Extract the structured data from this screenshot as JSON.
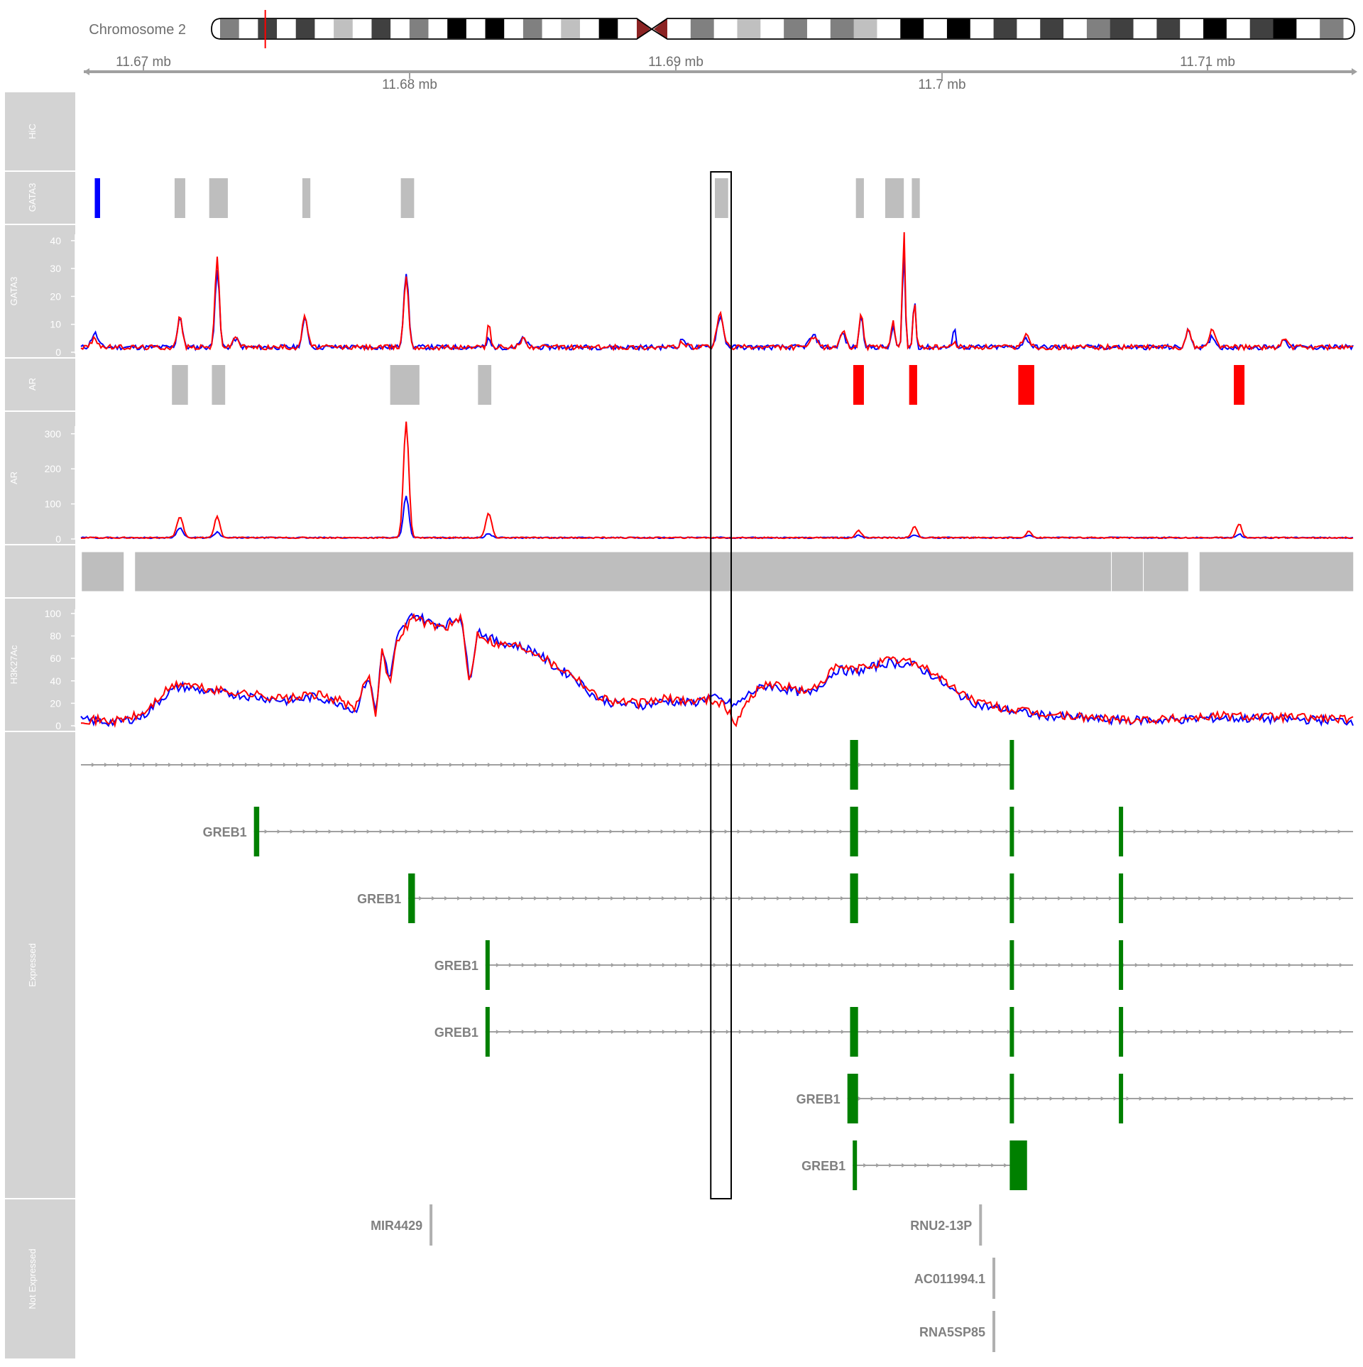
{
  "ideogram": {
    "chromosome_label": "Chromosome 2",
    "marker_position_fraction": 0.047
  },
  "axis": {
    "unit": "mb",
    "tick_labels_top": [
      "11.67 mb",
      "11.69 mb",
      "11.71 mb"
    ],
    "tick_labels_bottom": [
      "11.68 mb",
      "11.7 mb"
    ]
  },
  "tracks": {
    "hic": "HiC",
    "gata3_peaks": "GATA3",
    "gata3_signal": "GATA3",
    "ar_peaks": "AR",
    "ar_signal": "AR",
    "segments": "",
    "h3k27ac": "H3K27Ac",
    "expressed": "Expressed",
    "not_expressed": "Not Expressed"
  },
  "colors": {
    "series_blue": "#0000ff",
    "series_red": "#ff0000",
    "peak_gray": "#bebebe",
    "gene_green": "#008000",
    "panel_gray": "#d3d3d3",
    "centromere": "#8b2323"
  },
  "chart_data": {
    "type": "line",
    "genomic_range_mb": [
      11.6659,
      11.7137
    ],
    "highlight_region_mb": [
      11.6897,
      11.6902
    ],
    "gata3_peaks": [
      {
        "start": 11.66642,
        "end": 11.66662,
        "color": "blue"
      },
      {
        "start": 11.66942,
        "end": 11.66982,
        "color": "gray"
      },
      {
        "start": 11.67072,
        "end": 11.67142,
        "color": "gray"
      },
      {
        "start": 11.67422,
        "end": 11.67452,
        "color": "gray"
      },
      {
        "start": 11.67792,
        "end": 11.67842,
        "color": "gray"
      },
      {
        "start": 11.68972,
        "end": 11.69022,
        "color": "gray"
      },
      {
        "start": 11.69502,
        "end": 11.69532,
        "color": "gray"
      },
      {
        "start": 11.69612,
        "end": 11.69682,
        "color": "gray"
      },
      {
        "start": 11.69712,
        "end": 11.69742,
        "color": "gray"
      }
    ],
    "gata3_signal": {
      "ylim": [
        0,
        42
      ],
      "yticks": [
        0,
        10,
        20,
        30,
        40
      ],
      "baseline": 1.5,
      "peaks": [
        {
          "x": 11.66642,
          "blue": 5,
          "red": 3,
          "width": 0.00012
        },
        {
          "x": 11.66962,
          "blue": 11,
          "red": 11,
          "width": 9e-05
        },
        {
          "x": 11.67102,
          "blue": 28,
          "red": 32,
          "width": 8e-05
        },
        {
          "x": 11.67172,
          "blue": 3,
          "red": 4,
          "width": 0.0001
        },
        {
          "x": 11.67432,
          "blue": 10,
          "red": 11,
          "width": 0.0001
        },
        {
          "x": 11.67812,
          "blue": 27,
          "red": 25,
          "width": 9e-05
        },
        {
          "x": 11.68122,
          "blue": 3,
          "red": 9,
          "width": 6e-05
        },
        {
          "x": 11.68252,
          "blue": 3,
          "red": 3,
          "width": 0.00012
        },
        {
          "x": 11.68852,
          "blue": 3,
          "red": 2,
          "width": 0.0001
        },
        {
          "x": 11.68992,
          "blue": 11,
          "red": 12,
          "width": 0.00012
        },
        {
          "x": 11.69342,
          "blue": 4,
          "red": 3,
          "width": 0.00015
        },
        {
          "x": 11.69452,
          "blue": 5,
          "red": 6,
          "width": 0.0001
        },
        {
          "x": 11.69522,
          "blue": 12,
          "red": 13,
          "width": 7e-05
        },
        {
          "x": 11.69642,
          "blue": 8,
          "red": 10,
          "width": 6e-05
        },
        {
          "x": 11.69682,
          "blue": 36,
          "red": 42,
          "width": 5e-05
        },
        {
          "x": 11.69722,
          "blue": 18,
          "red": 17,
          "width": 5e-05
        },
        {
          "x": 11.69872,
          "blue": 6,
          "red": 2,
          "width": 6e-05
        },
        {
          "x": 11.70142,
          "blue": 3,
          "red": 5,
          "width": 0.00012
        },
        {
          "x": 11.70752,
          "blue": 6,
          "red": 6,
          "width": 0.0001
        },
        {
          "x": 11.70842,
          "blue": 4,
          "red": 7,
          "width": 0.0001
        },
        {
          "x": 11.71112,
          "blue": 3,
          "red": 3,
          "width": 0.0001
        }
      ]
    },
    "ar_peaks": [
      {
        "start": 11.66932,
        "end": 11.66992,
        "color": "gray"
      },
      {
        "start": 11.67082,
        "end": 11.67132,
        "color": "gray"
      },
      {
        "start": 11.67752,
        "end": 11.67862,
        "color": "gray"
      },
      {
        "start": 11.68082,
        "end": 11.68132,
        "color": "gray"
      },
      {
        "start": 11.69492,
        "end": 11.69532,
        "color": "red"
      },
      {
        "start": 11.69702,
        "end": 11.69732,
        "color": "red"
      },
      {
        "start": 11.70112,
        "end": 11.70172,
        "color": "red"
      },
      {
        "start": 11.70922,
        "end": 11.70962,
        "color": "red"
      }
    ],
    "ar_signal": {
      "ylim": [
        0,
        330
      ],
      "yticks": [
        0,
        100,
        200,
        300
      ],
      "baseline": 3,
      "peaks": [
        {
          "x": 11.66962,
          "blue": 28,
          "red": 58,
          "width": 0.00012
        },
        {
          "x": 11.67102,
          "blue": 16,
          "red": 62,
          "width": 0.0001
        },
        {
          "x": 11.67812,
          "blue": 120,
          "red": 330,
          "width": 0.0001
        },
        {
          "x": 11.68122,
          "blue": 12,
          "red": 70,
          "width": 0.00011
        },
        {
          "x": 11.69512,
          "blue": 6,
          "red": 20,
          "width": 0.00011
        },
        {
          "x": 11.69722,
          "blue": 8,
          "red": 32,
          "width": 0.0001
        },
        {
          "x": 11.70152,
          "blue": 8,
          "red": 20,
          "width": 0.0001
        },
        {
          "x": 11.70942,
          "blue": 10,
          "red": 40,
          "width": 0.0001
        }
      ]
    },
    "segments": [
      {
        "start": 11.66592,
        "end": 11.66752
      },
      {
        "start": 11.66792,
        "end": 11.70462
      },
      {
        "start": 11.70462,
        "end": 11.70582
      },
      {
        "start": 11.70582,
        "end": 11.70752
      },
      {
        "start": 11.70792,
        "end": 11.71372
      }
    ],
    "h3k27ac_signal": {
      "ylim": [
        0,
        105
      ],
      "yticks": [
        0,
        20,
        40,
        60,
        80,
        100
      ],
      "blue_points": [
        [
          11.6659,
          5
        ],
        [
          11.6672,
          3
        ],
        [
          11.6682,
          8
        ],
        [
          11.6692,
          30
        ],
        [
          11.6697,
          35
        ],
        [
          11.6707,
          30
        ],
        [
          11.6717,
          28
        ],
        [
          11.6727,
          25
        ],
        [
          11.6737,
          22
        ],
        [
          11.6747,
          26
        ],
        [
          11.6757,
          20
        ],
        [
          11.6762,
          12
        ],
        [
          11.6767,
          45
        ],
        [
          11.677,
          10
        ],
        [
          11.6772,
          70
        ],
        [
          11.6775,
          40
        ],
        [
          11.6778,
          80
        ],
        [
          11.6784,
          100
        ],
        [
          11.679,
          92
        ],
        [
          11.6796,
          90
        ],
        [
          11.6802,
          98
        ],
        [
          11.6805,
          38
        ],
        [
          11.6808,
          85
        ],
        [
          11.6815,
          75
        ],
        [
          11.6822,
          72
        ],
        [
          11.683,
          66
        ],
        [
          11.6837,
          52
        ],
        [
          11.6844,
          44
        ],
        [
          11.6852,
          26
        ],
        [
          11.6859,
          20
        ],
        [
          11.6869,
          18
        ],
        [
          11.6879,
          22
        ],
        [
          11.6889,
          20
        ],
        [
          11.6895,
          26
        ],
        [
          11.69,
          22
        ],
        [
          11.6905,
          18
        ],
        [
          11.6911,
          30
        ],
        [
          11.6917,
          36
        ],
        [
          11.6925,
          32
        ],
        [
          11.6933,
          28
        ],
        [
          11.6943,
          50
        ],
        [
          11.695,
          48
        ],
        [
          11.6962,
          56
        ],
        [
          11.6971,
          55
        ],
        [
          11.6979,
          45
        ],
        [
          11.6987,
          30
        ],
        [
          11.6997,
          18
        ],
        [
          11.7007,
          14
        ],
        [
          11.7017,
          10
        ],
        [
          11.7027,
          8
        ],
        [
          11.7047,
          5
        ],
        [
          11.7067,
          5
        ],
        [
          11.7087,
          7
        ],
        [
          11.7107,
          6
        ],
        [
          11.7127,
          5
        ],
        [
          11.7137,
          4
        ]
      ],
      "red_points": [
        [
          11.6659,
          6
        ],
        [
          11.6672,
          4
        ],
        [
          11.6682,
          10
        ],
        [
          11.6692,
          33
        ],
        [
          11.6697,
          38
        ],
        [
          11.6707,
          32
        ],
        [
          11.6717,
          30
        ],
        [
          11.6727,
          27
        ],
        [
          11.6737,
          24
        ],
        [
          11.6747,
          28
        ],
        [
          11.6757,
          22
        ],
        [
          11.6762,
          14
        ],
        [
          11.6767,
          47
        ],
        [
          11.677,
          8
        ],
        [
          11.6772,
          72
        ],
        [
          11.6775,
          36
        ],
        [
          11.6778,
          78
        ],
        [
          11.6784,
          97
        ],
        [
          11.679,
          90
        ],
        [
          11.6796,
          88
        ],
        [
          11.6802,
          95
        ],
        [
          11.6805,
          36
        ],
        [
          11.6808,
          83
        ],
        [
          11.6815,
          73
        ],
        [
          11.6822,
          72
        ],
        [
          11.683,
          66
        ],
        [
          11.6837,
          54
        ],
        [
          11.6844,
          46
        ],
        [
          11.6852,
          28
        ],
        [
          11.6859,
          22
        ],
        [
          11.6869,
          20
        ],
        [
          11.6879,
          24
        ],
        [
          11.6889,
          22
        ],
        [
          11.6895,
          24
        ],
        [
          11.69,
          20
        ],
        [
          11.6905,
          2
        ],
        [
          11.6911,
          28
        ],
        [
          11.6917,
          38
        ],
        [
          11.6925,
          34
        ],
        [
          11.6933,
          30
        ],
        [
          11.6943,
          52
        ],
        [
          11.695,
          50
        ],
        [
          11.6962,
          58
        ],
        [
          11.6971,
          58
        ],
        [
          11.6979,
          48
        ],
        [
          11.6987,
          33
        ],
        [
          11.6997,
          20
        ],
        [
          11.7007,
          15
        ],
        [
          11.7017,
          11
        ],
        [
          11.7027,
          9
        ],
        [
          11.7047,
          6
        ],
        [
          11.7067,
          6
        ],
        [
          11.7087,
          9
        ],
        [
          11.7107,
          8
        ],
        [
          11.7127,
          7
        ],
        [
          11.7137,
          5
        ]
      ]
    },
    "transcripts_expressed": [
      {
        "label": "",
        "start": 11.6659,
        "end": 11.7009,
        "exons": [
          [
            11.6948,
            11.6951
          ],
          [
            11.7008,
            11.70085
          ]
        ]
      },
      {
        "label": "GREB1",
        "start": 11.6724,
        "end": 11.7137,
        "exons": [
          [
            11.6724,
            11.6726
          ],
          [
            11.6948,
            11.6951
          ],
          [
            11.7008,
            11.70095
          ],
          [
            11.7049,
            11.70505
          ]
        ]
      },
      {
        "label": "GREB1",
        "start": 11.6782,
        "end": 11.7137,
        "exons": [
          [
            11.6782,
            11.67845
          ],
          [
            11.6948,
            11.6951
          ],
          [
            11.7008,
            11.70095
          ],
          [
            11.7049,
            11.70505
          ]
        ]
      },
      {
        "label": "GREB1",
        "start": 11.6811,
        "end": 11.7137,
        "exons": [
          [
            11.6811,
            11.68125
          ],
          [
            11.7008,
            11.70095
          ],
          [
            11.7049,
            11.70505
          ]
        ]
      },
      {
        "label": "GREB1",
        "start": 11.6811,
        "end": 11.7137,
        "exons": [
          [
            11.6811,
            11.68125
          ],
          [
            11.6948,
            11.6951
          ],
          [
            11.7008,
            11.70095
          ],
          [
            11.7049,
            11.70505
          ]
        ]
      },
      {
        "label": "GREB1",
        "start": 11.6947,
        "end": 11.7137,
        "exons": [
          [
            11.6947,
            11.6951
          ],
          [
            11.7008,
            11.70095
          ],
          [
            11.7049,
            11.70505
          ]
        ]
      },
      {
        "label": "GREB1",
        "start": 11.6949,
        "end": 11.7008,
        "exons": [
          [
            11.6949,
            11.69505
          ],
          [
            11.7008,
            11.70145
          ]
        ]
      }
    ],
    "transcripts_not_expressed": [
      {
        "label": "MIR4429",
        "start": 11.679,
        "end": 11.6791
      },
      {
        "label": "RNU2-13P",
        "start": 11.69965,
        "end": 11.69975
      },
      {
        "label": "AC011994.1",
        "start": 11.70015,
        "end": 11.70025
      },
      {
        "label": "RNA5SP85",
        "start": 11.70015,
        "end": 11.70025
      }
    ]
  }
}
